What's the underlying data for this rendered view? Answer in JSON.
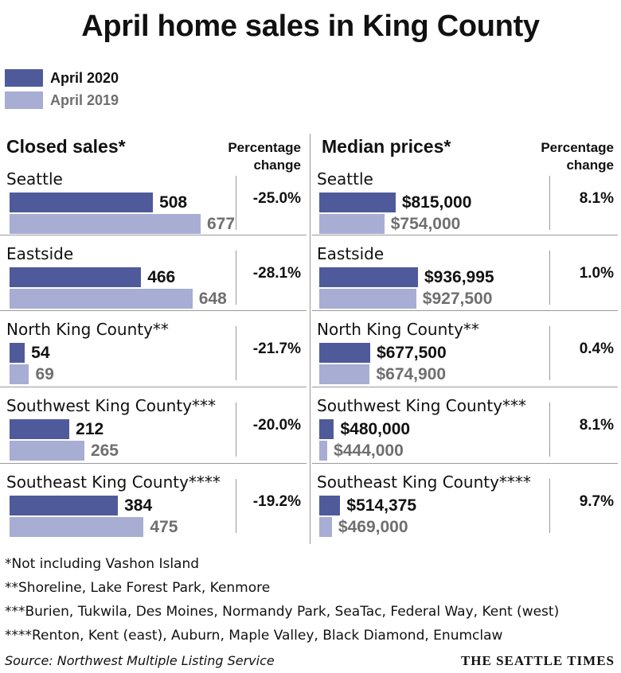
{
  "title": "April home sales in King County",
  "legend": [
    {
      "label": "April 2020",
      "color": "#4f5a9b"
    },
    {
      "label": "April 2019",
      "color": "#a7add3"
    }
  ],
  "colors": {
    "april_2020": "#4f5a9b",
    "april_2019": "#a7add3",
    "label_2019": "#6f6f6f"
  },
  "chart_data": [
    {
      "type": "bar",
      "title": "Closed sales*",
      "pct_header": [
        "Percentage",
        "change"
      ],
      "categories": [
        "Seattle",
        "Eastside",
        "North King County**",
        "Southwest King County***",
        "Southeast King County****"
      ],
      "series": [
        {
          "name": "April 2020",
          "values": [
            508,
            466,
            54,
            212,
            384
          ],
          "labels": [
            "508",
            "466",
            "54",
            "212",
            "384"
          ]
        },
        {
          "name": "April 2019",
          "values": [
            677,
            648,
            69,
            265,
            475
          ],
          "labels": [
            "677",
            "648",
            "69",
            "265",
            "475"
          ]
        }
      ],
      "percentage_change": [
        "-25.0%",
        "-28.1%",
        "-21.7%",
        "-20.0%",
        "-19.2%"
      ]
    },
    {
      "type": "bar",
      "title": "Median prices*",
      "pct_header": [
        "Percentage",
        "change"
      ],
      "categories": [
        "Seattle",
        "Eastside",
        "North King County**",
        "Southwest King County***",
        "Southeast King County****"
      ],
      "series": [
        {
          "name": "April 2020",
          "values": [
            815000,
            936995,
            677500,
            480000,
            514375
          ],
          "labels": [
            "$815,000",
            "$936,995",
            "$677,500",
            "$480,000",
            "$514,375"
          ]
        },
        {
          "name": "April 2019",
          "values": [
            754000,
            927500,
            674900,
            444000,
            469000
          ],
          "labels": [
            "$754,000",
            "$927,500",
            "$674,900",
            "$444,000",
            "$469,000"
          ]
        }
      ],
      "percentage_change": [
        "8.1%",
        "1.0%",
        "0.4%",
        "8.1%",
        "9.7%"
      ]
    }
  ],
  "footnotes": [
    "*Not including Vashon Island",
    "**Shoreline, Lake Forest Park, Kenmore",
    "***Burien, Tukwila, Des Moines, Normandy Park, SeaTac, Federal Way, Kent (west)",
    "****Renton, Kent (east), Auburn, Maple Valley, Black Diamond, Enumclaw"
  ],
  "source": "Source: Northwest Multiple Listing Service",
  "brand": "THE SEATTLE TIMES"
}
